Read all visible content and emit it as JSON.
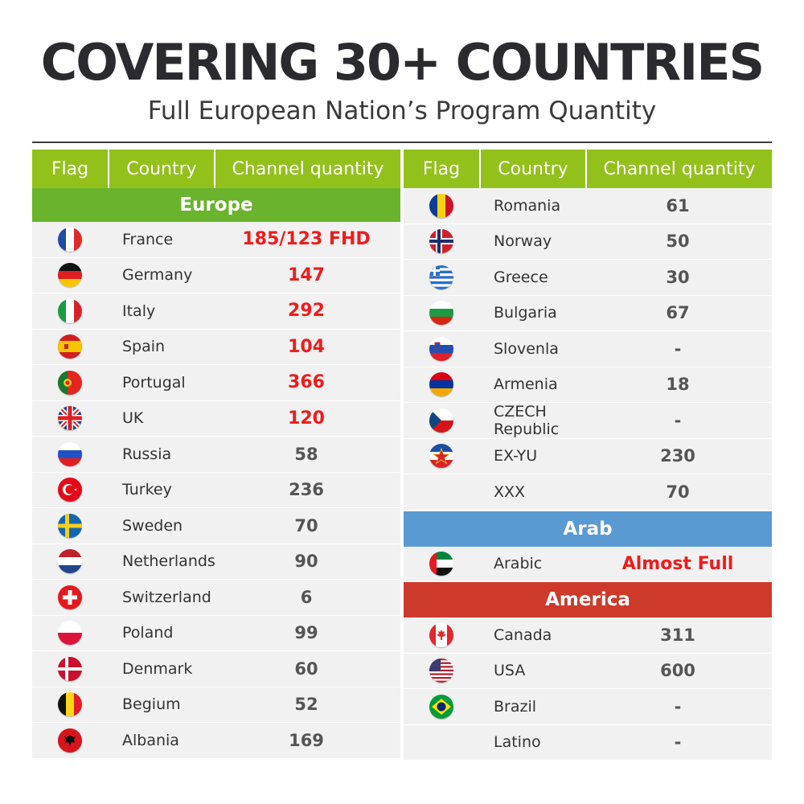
{
  "title": "COVERING 30+ COUNTRIES",
  "subtitle": "Full European Nation’s Program Quantity",
  "headers": {
    "flag": "Flag",
    "country": "Country",
    "quantity": "Channel quantity"
  },
  "colors": {
    "header_green": "#93c11c",
    "europe_green": "#6ab32c",
    "arab_blue": "#5a9ad2",
    "america_red": "#cd3a2b",
    "highlight_red": "#ee1c1c"
  },
  "left": {
    "section": "Europe",
    "rows": [
      {
        "country": "France",
        "qty": "185/123 FHD",
        "flag": "france-flag-icon"
      },
      {
        "country": "Germany",
        "qty": "147",
        "flag": "germany-flag-icon"
      },
      {
        "country": "Italy",
        "qty": "292",
        "flag": "italy-flag-icon"
      },
      {
        "country": "Spain",
        "qty": "104",
        "flag": "spain-flag-icon"
      },
      {
        "country": "Portugal",
        "qty": "366",
        "flag": "portugal-flag-icon"
      },
      {
        "country": "UK",
        "qty": "120",
        "flag": "uk-flag-icon"
      },
      {
        "country": "Russia",
        "qty": "58",
        "flag": "russia-flag-icon"
      },
      {
        "country": "Turkey",
        "qty": "236",
        "flag": "turkey-flag-icon"
      },
      {
        "country": "Sweden",
        "qty": "70",
        "flag": "sweden-flag-icon"
      },
      {
        "country": "Netherlands",
        "qty": "90",
        "flag": "netherlands-flag-icon"
      },
      {
        "country": "Switzerland",
        "qty": "6",
        "flag": "switzerland-flag-icon"
      },
      {
        "country": "Poland",
        "qty": "99",
        "flag": "poland-flag-icon"
      },
      {
        "country": "Denmark",
        "qty": "60",
        "flag": "denmark-flag-icon"
      },
      {
        "country": "Begium",
        "qty": "52",
        "flag": "belgium-flag-icon"
      },
      {
        "country": "Albania",
        "qty": "169",
        "flag": "albania-flag-icon"
      }
    ]
  },
  "right": {
    "rows": [
      {
        "country": "Romania",
        "qty": "61",
        "flag": "romania-flag-icon"
      },
      {
        "country": "Norway",
        "qty": "50",
        "flag": "norway-flag-icon"
      },
      {
        "country": "Greece",
        "qty": "30",
        "flag": "greece-flag-icon"
      },
      {
        "country": "Bulgaria",
        "qty": "67",
        "flag": "bulgaria-flag-icon"
      },
      {
        "country": "Slovenla",
        "qty": "-",
        "flag": "slovenia-flag-icon"
      },
      {
        "country": "Armenia",
        "qty": "18",
        "flag": "armenia-flag-icon"
      },
      {
        "country": "CZECH Republic",
        "qty": "-",
        "flag": "czech-flag-icon"
      },
      {
        "country": "EX-YU",
        "qty": "230",
        "flag": "yugoslavia-flag-icon"
      },
      {
        "country": "XXX",
        "qty": "70",
        "flag": ""
      }
    ],
    "arab_section": "Arab",
    "arab_rows": [
      {
        "country": "Arabic",
        "qty": "Almost Full",
        "flag": "uae-flag-icon"
      }
    ],
    "america_section": "America",
    "america_rows": [
      {
        "country": "Canada",
        "qty": "311",
        "flag": "canada-flag-icon"
      },
      {
        "country": "USA",
        "qty": "600",
        "flag": "usa-flag-icon"
      },
      {
        "country": "Brazil",
        "qty": "-",
        "flag": "brazil-flag-icon"
      },
      {
        "country": "Latino",
        "qty": "-",
        "flag": ""
      }
    ]
  }
}
